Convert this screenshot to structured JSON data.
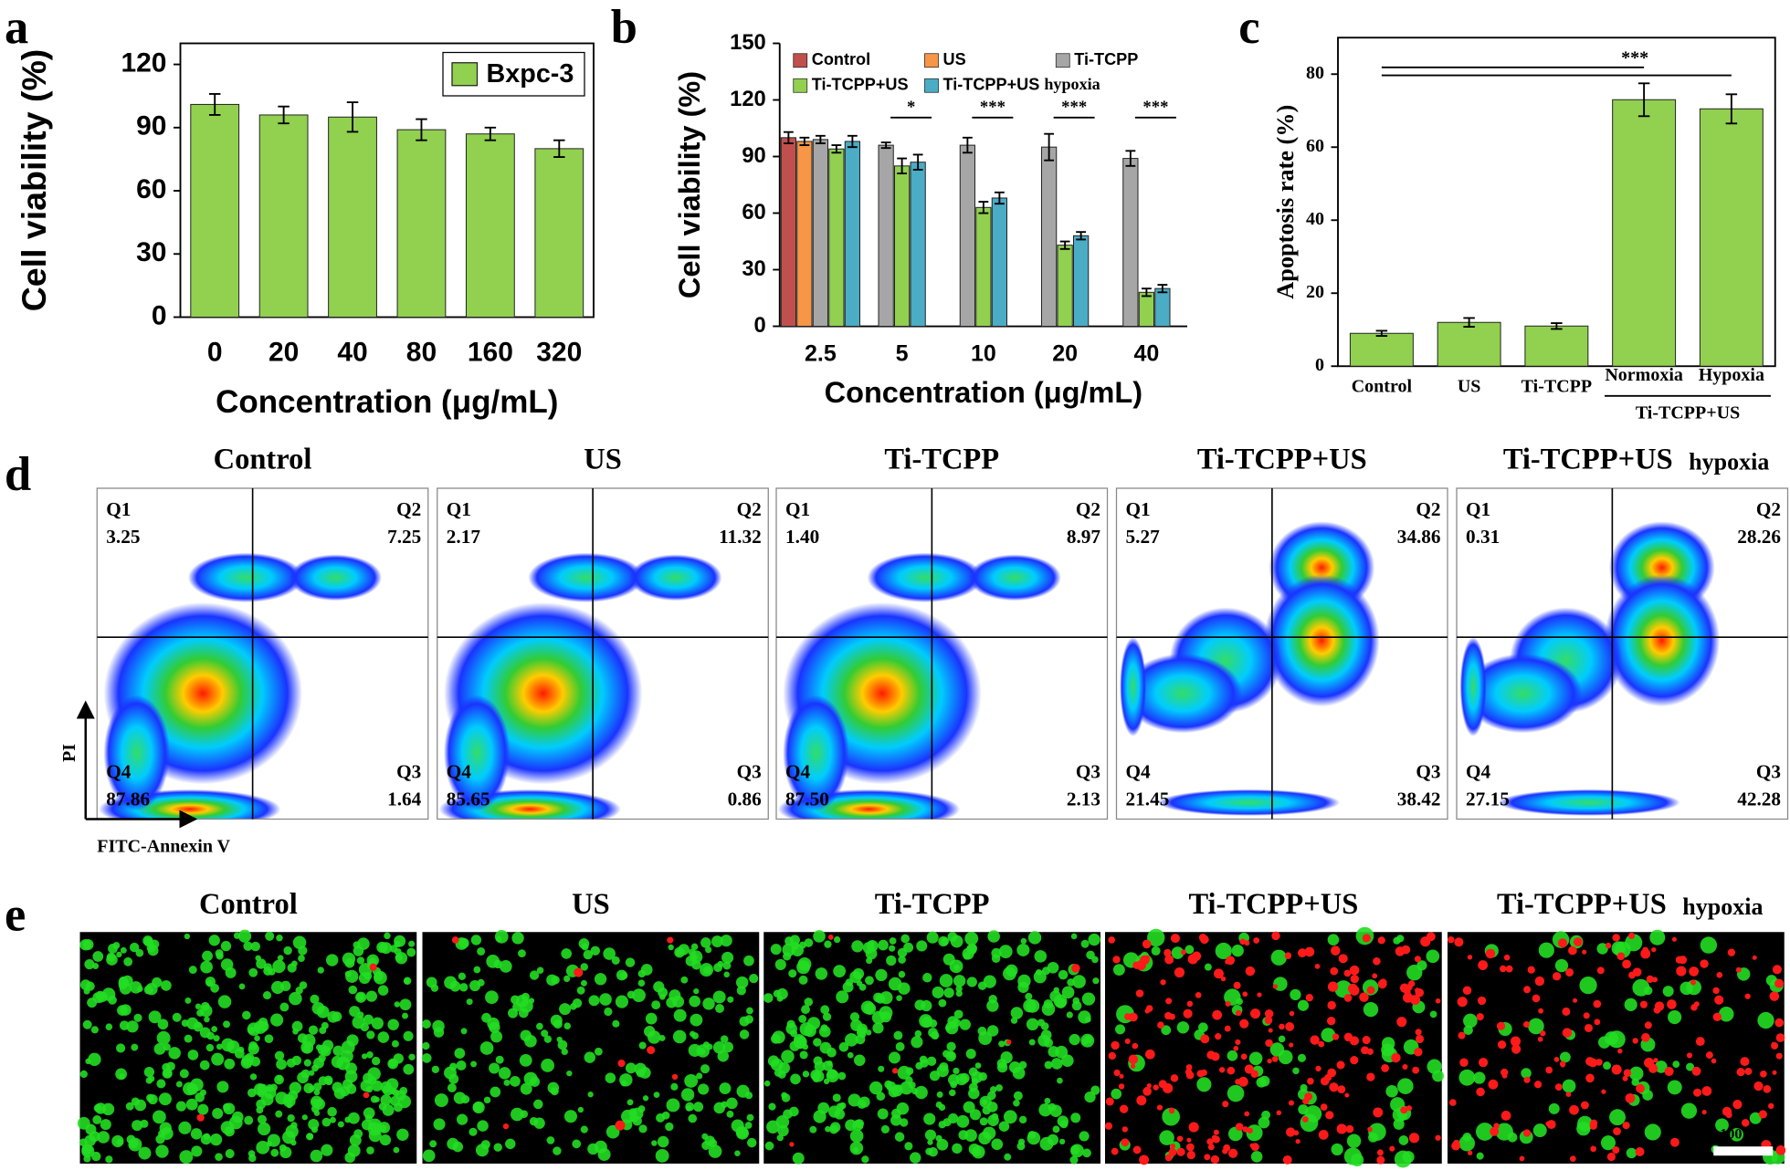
{
  "chart_data": [
    {
      "panel": "a",
      "type": "bar",
      "categories": [
        "0",
        "20",
        "40",
        "80",
        "160",
        "320"
      ],
      "series": [
        {
          "name": "Bxpc-3",
          "color": "#92d050",
          "values": [
            101,
            96,
            95,
            89,
            87,
            80
          ],
          "errors": [
            5,
            4,
            7,
            5,
            3,
            4
          ]
        }
      ],
      "ylim": [
        0,
        130
      ],
      "yticks": [
        0,
        30,
        60,
        90,
        120
      ],
      "x_label": "Concentration (μg/mL)",
      "y_label": "Cell viability (%)",
      "legend": "upper right",
      "frame": true
    },
    {
      "panel": "b",
      "type": "bar",
      "categories": [
        "2.5",
        "5",
        "10",
        "20",
        "40"
      ],
      "series": [
        {
          "name": "Control",
          "color": "#c0504d",
          "values": [
            100,
            null,
            null,
            null,
            null
          ],
          "errors": [
            3,
            null,
            null,
            null,
            null
          ]
        },
        {
          "name": "US",
          "color": "#f79646",
          "values": [
            98,
            null,
            null,
            null,
            null
          ],
          "errors": [
            2,
            null,
            null,
            null,
            null
          ]
        },
        {
          "name": "Ti-TCPP",
          "color": "#a6a6a6",
          "values": [
            99,
            96,
            96,
            95,
            89
          ],
          "errors": [
            2,
            1.5,
            4,
            7,
            4
          ]
        },
        {
          "name": "Ti-TCPP+US",
          "color": "#92d050",
          "values": [
            94,
            85,
            63,
            43,
            18
          ],
          "errors": [
            2,
            4,
            3,
            2,
            2
          ]
        },
        {
          "name": "Ti-TCPP+US",
          "label_suffix": "hypoxia",
          "suffix_color": "#ff0000",
          "color": "#4bacc6",
          "values": [
            98,
            87,
            68,
            48,
            20
          ],
          "errors": [
            3,
            4,
            3,
            2,
            2
          ]
        }
      ],
      "annotations": [
        {
          "category": "5",
          "label": "*"
        },
        {
          "category": "10",
          "label": "***"
        },
        {
          "category": "20",
          "label": "***"
        },
        {
          "category": "40",
          "label": "***"
        }
      ],
      "ylim": [
        0,
        150
      ],
      "yticks": [
        0,
        30,
        60,
        90,
        120,
        150
      ],
      "x_label": "Concentration (μg/mL)",
      "y_label": "Cell viability (%)",
      "legend": "top",
      "frame": false
    },
    {
      "panel": "c",
      "type": "bar",
      "categories": [
        "Control",
        "US",
        "Ti-TCPP",
        "Normoxia",
        "Hypoxia"
      ],
      "category_colors": [
        "#000000",
        "#000000",
        "#000000",
        "#000000",
        "#ff0000"
      ],
      "series": [
        {
          "name": "Apoptosis rate",
          "color": "#92d050",
          "values": [
            9,
            12,
            11,
            73,
            70.5
          ],
          "errors": [
            0.7,
            1.2,
            0.8,
            4.5,
            4
          ]
        }
      ],
      "group": {
        "label": "Ti-TCPP+US",
        "categories": [
          "Normoxia",
          "Hypoxia"
        ]
      },
      "significance": {
        "label": "***",
        "from": "Control",
        "to": [
          "Normoxia",
          "Hypoxia"
        ]
      },
      "ylim": [
        0,
        90
      ],
      "yticks": [
        0,
        20,
        40,
        60,
        80
      ],
      "y_label": "Apoptosis rate (%)",
      "legend": "none",
      "frame": true
    }
  ],
  "flow": {
    "panel": "d",
    "x_label": "FITC-Annexin V",
    "y_label": "PI",
    "plots": [
      {
        "title": "Control",
        "quadrants": [
          [
            "Q1",
            "3.25"
          ],
          [
            "Q2",
            "7.25"
          ],
          [
            "Q3",
            "1.64"
          ],
          [
            "Q4",
            "87.86"
          ]
        ]
      },
      {
        "title": "US",
        "quadrants": [
          [
            "Q1",
            "2.17"
          ],
          [
            "Q2",
            "11.32"
          ],
          [
            "Q3",
            "0.86"
          ],
          [
            "Q4",
            "85.65"
          ]
        ]
      },
      {
        "title": "Ti-TCPP",
        "quadrants": [
          [
            "Q1",
            "1.40"
          ],
          [
            "Q2",
            "8.97"
          ],
          [
            "Q3",
            "2.13"
          ],
          [
            "Q4",
            "87.50"
          ]
        ]
      },
      {
        "title": "Ti-TCPP+US",
        "quadrants": [
          [
            "Q1",
            "5.27"
          ],
          [
            "Q2",
            "34.86"
          ],
          [
            "Q3",
            "38.42"
          ],
          [
            "Q4",
            "21.45"
          ]
        ]
      },
      {
        "title": "Ti-TCPP+US",
        "title_suffix": "hypoxia",
        "quadrants": [
          [
            "Q1",
            "0.31"
          ],
          [
            "Q2",
            "28.26"
          ],
          [
            "Q3",
            "42.28"
          ],
          [
            "Q4",
            "27.15"
          ]
        ]
      }
    ]
  },
  "staining": {
    "panel": "e",
    "scale_bar": "100 μm",
    "images": [
      {
        "title": "Control"
      },
      {
        "title": "US"
      },
      {
        "title": "Ti-TCPP"
      },
      {
        "title": "Ti-TCPP+US"
      },
      {
        "title": "Ti-TCPP+US",
        "title_suffix": "hypoxia"
      }
    ]
  }
}
